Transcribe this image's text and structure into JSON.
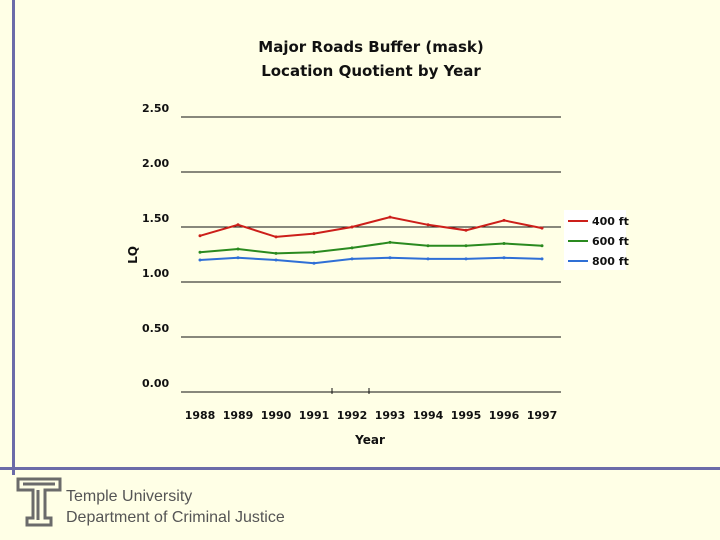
{
  "footer": {
    "university": "Temple University",
    "department": "Department of Criminal Justice"
  },
  "chart_data": {
    "type": "line",
    "title_lines": [
      "Major Roads Buffer (mask)",
      "Location Quotient by Year"
    ],
    "xlabel": "Year",
    "ylabel": "LQ",
    "categories": [
      "1988",
      "1989",
      "1990",
      "1991",
      "1992",
      "1993",
      "1994",
      "1995",
      "1996",
      "1997"
    ],
    "ylim": [
      0,
      2.5
    ],
    "yticks": [
      0,
      0.5,
      1,
      1.5,
      2,
      2.5
    ],
    "ytick_labels": [
      "0.00",
      "0.50",
      "1.00",
      "1.50",
      "2.00",
      "2.50"
    ],
    "grid": true,
    "legend_position": "right",
    "series": [
      {
        "name": "400 ft",
        "color": "#cc1f1a",
        "values": [
          1.42,
          1.52,
          1.41,
          1.44,
          1.5,
          1.59,
          1.52,
          1.47,
          1.56,
          1.49
        ]
      },
      {
        "name": "600 ft",
        "color": "#2a8a1f",
        "values": [
          1.27,
          1.3,
          1.26,
          1.27,
          1.31,
          1.36,
          1.33,
          1.33,
          1.35,
          1.33
        ]
      },
      {
        "name": "800 ft",
        "color": "#2f6fd6",
        "values": [
          1.2,
          1.22,
          1.2,
          1.17,
          1.21,
          1.22,
          1.21,
          1.21,
          1.22,
          1.21
        ]
      }
    ]
  }
}
